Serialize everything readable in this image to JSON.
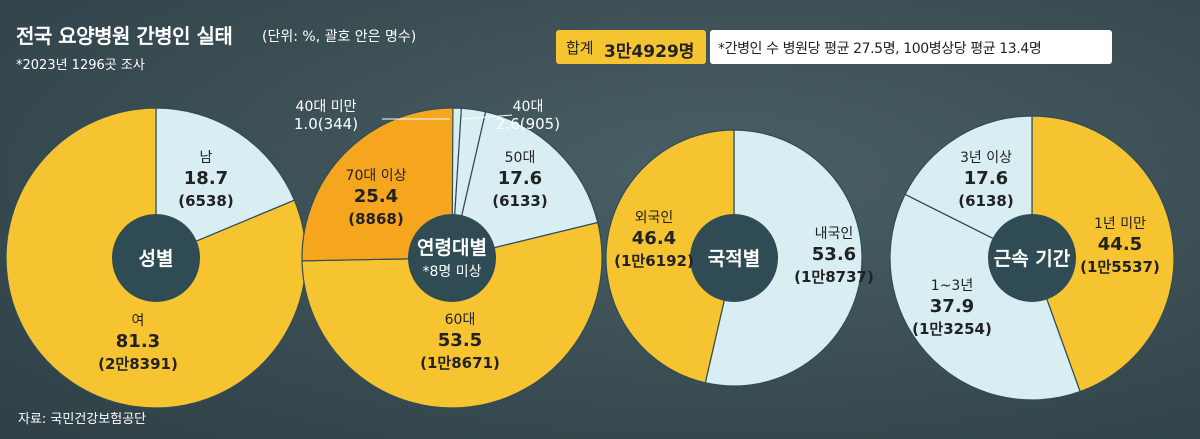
{
  "header": {
    "title": "전국 요양병원 간병인 실태",
    "unit": "(단위: %, 괄호 안은 명수)",
    "subtitle": "*2023년 1296곳 조사"
  },
  "total": {
    "label": "합계",
    "value": "3만4929명"
  },
  "note": "*간병인 수 병원당 평균 27.5명, 100병상당 평균 13.4명",
  "source": "자료: 국민건강보험공단",
  "colors": {
    "yellow": "#f6c431",
    "orange": "#f6a51f",
    "lightblue": "#d8eef3",
    "center": "#2f4c55"
  },
  "chart_data": [
    {
      "type": "pie",
      "title": "성별",
      "slices": [
        {
          "name": "남",
          "pct": 18.7,
          "pct_text": "18.7",
          "count_text": "(6538)",
          "color": "lightblue"
        },
        {
          "name": "여",
          "pct": 81.3,
          "pct_text": "81.3",
          "count_text": "(2만8391)",
          "color": "yellow"
        }
      ]
    },
    {
      "type": "pie",
      "title": "연령대별",
      "subtitle": "*8명 미상",
      "slices": [
        {
          "name": "40대 미만",
          "pct": 1.0,
          "pct_text": "1.0(344)",
          "count_text": "",
          "color": "lightblue"
        },
        {
          "name": "40대",
          "pct": 2.6,
          "pct_text": "2.6(905)",
          "count_text": "",
          "color": "lightblue"
        },
        {
          "name": "50대",
          "pct": 17.6,
          "pct_text": "17.6",
          "count_text": "(6133)",
          "color": "lightblue"
        },
        {
          "name": "60대",
          "pct": 53.5,
          "pct_text": "53.5",
          "count_text": "(1만8671)",
          "color": "yellow"
        },
        {
          "name": "70대 이상",
          "pct": 25.4,
          "pct_text": "25.4",
          "count_text": "(8868)",
          "color": "orange"
        }
      ]
    },
    {
      "type": "pie",
      "title": "국적별",
      "slices": [
        {
          "name": "내국인",
          "pct": 53.6,
          "pct_text": "53.6",
          "count_text": "(1만8737)",
          "color": "lightblue"
        },
        {
          "name": "외국인",
          "pct": 46.4,
          "pct_text": "46.4",
          "count_text": "(1만6192)",
          "color": "yellow"
        }
      ]
    },
    {
      "type": "pie",
      "title": "근속 기간",
      "slices": [
        {
          "name": "1년 미만",
          "pct": 44.5,
          "pct_text": "44.5",
          "count_text": "(1만5537)",
          "color": "yellow"
        },
        {
          "name": "1~3년",
          "pct": 37.9,
          "pct_text": "37.9",
          "count_text": "(1만3254)",
          "color": "lightblue"
        },
        {
          "name": "3년 이상",
          "pct": 17.6,
          "pct_text": "17.6",
          "count_text": "(6138)",
          "color": "lightblue"
        }
      ]
    }
  ]
}
